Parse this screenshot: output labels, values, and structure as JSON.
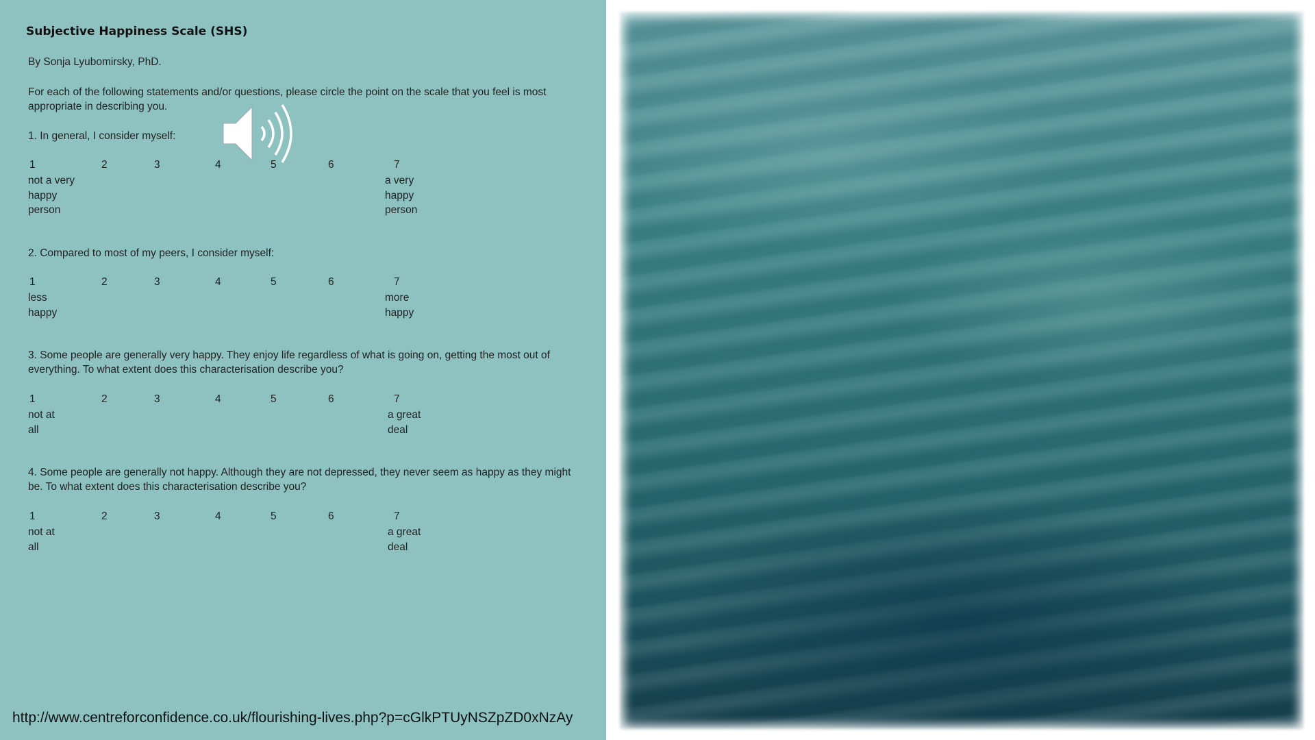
{
  "document": {
    "title": "Subjective Happiness Scale (SHS)",
    "author": "By Sonja Lyubomirsky, PhD.",
    "instructions": "For each of the following statements and/or questions, please circle the point on the scale that you feel is most appropriate in describing you.",
    "scale_numbers": [
      "1",
      "2",
      "3",
      "4",
      "5",
      "6",
      "7"
    ],
    "questions": [
      {
        "text": "1. In general, I consider myself:",
        "low_anchor": "not a very\nhappy\nperson",
        "high_anchor": "a very\nhappy\nperson"
      },
      {
        "text": "2. Compared to most of my peers, I consider myself:",
        "low_anchor": "less\nhappy",
        "high_anchor": "more\nhappy"
      },
      {
        "text": "3. Some people are generally very happy. They enjoy life regardless of what is going on, getting the most out of everything. To what extent does this characterisation describe you?",
        "low_anchor": "not at\nall",
        "high_anchor": "a great\ndeal"
      },
      {
        "text": "4. Some people are generally not happy. Although they are not depressed, they never seem as happy as they might be. To what extent does this characterisation describe you?",
        "low_anchor": "not at\nall",
        "high_anchor": "a great\ndeal"
      }
    ]
  },
  "audio_icon": "speaker-icon",
  "source_url": "http://www.centreforconfidence.co.uk/flourishing-lives.php?p=cGlkPTUyNSZpZD0xNzAy",
  "colors": {
    "left_panel_bg": "#8dc2c0",
    "photo_water": "#2d6f76"
  }
}
